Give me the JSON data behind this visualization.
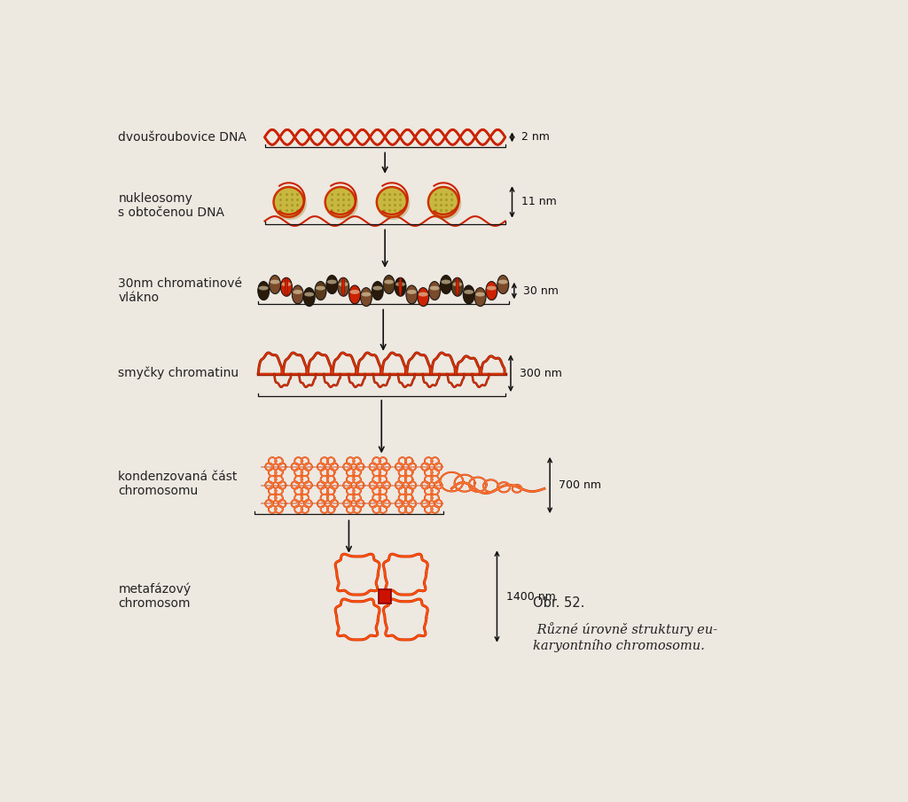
{
  "bg_color": "#ede8e0",
  "labels": [
    "dvoušroubovice DNA",
    "nukleosomy\ns obtočenou DNA",
    "30nm chromatinové\nvlákno",
    "smyčky chromatinu",
    "kondenzovaná část\nchromosomu",
    "metafázový\nchromosom"
  ],
  "sizes": [
    "2 nm",
    "11 nm",
    "30 nm",
    "300 nm",
    "700 nm",
    "1400 nm"
  ],
  "caption_bold": "Obr. 52.",
  "caption_italic": " Různé úrovně struktury eu-\nkaryontního chromosomu.",
  "dna_color": "#cc2200",
  "nuc_fill": "#c8b840",
  "nuc_edge": "#cc3300",
  "nuc_inner": "#a09020",
  "fiber30_dark": "#2a1a0a",
  "fiber30_mid": "#7a4a2a",
  "fiber30_red": "#cc2200",
  "fiber30_cream": "#e8d8b0",
  "loops_outer": "#881800",
  "loops_inner": "#dd3300",
  "cond_outer": "#cc3300",
  "cond_inner": "#ff7733",
  "met_outer": "#cc2200",
  "met_inner": "#ff5500",
  "centromere": "#cc1100",
  "arrow_color": "#111111",
  "label_color": "#222222",
  "size_color": "#111111"
}
